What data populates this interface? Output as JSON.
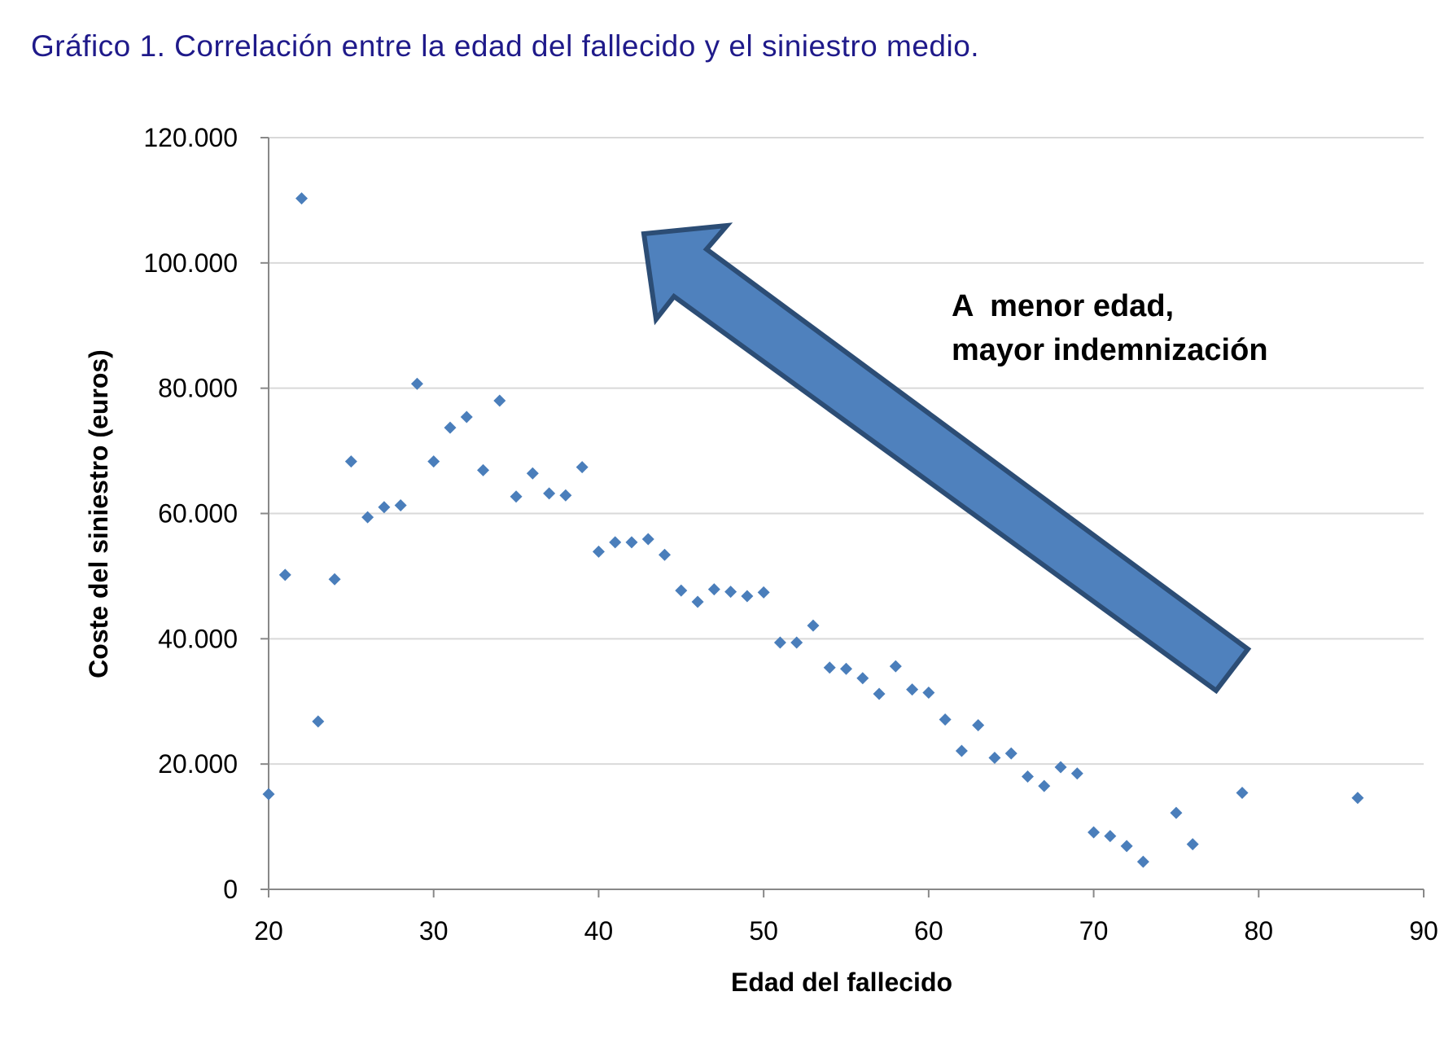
{
  "title": "Gráfico 1. Correlación entre la edad del fallecido y el siniestro medio.",
  "colors": {
    "title": "#1f1a8a",
    "marker": "#4a7ebb",
    "arrow_fill": "#4f81bd",
    "arrow_stroke": "#2c4d75",
    "grid": "#d9d9d9",
    "axis": "#888888"
  },
  "annotation": {
    "line1": "A  menor edad,",
    "line2": "mayor indemnización",
    "arrow_icon": "arrow-up-left-icon"
  },
  "chart_data": {
    "type": "scatter",
    "title": "Gráfico 1. Correlación entre la edad del fallecido y el siniestro medio.",
    "xlabel": "Edad del fallecido",
    "ylabel": "Coste del siniestro (euros)",
    "xlim": [
      20,
      90
    ],
    "ylim": [
      0,
      120000
    ],
    "x_ticks": [
      20,
      30,
      40,
      50,
      60,
      70,
      80,
      90
    ],
    "y_ticks": [
      0,
      20000,
      40000,
      60000,
      80000,
      100000,
      120000
    ],
    "x_tick_labels": [
      "20",
      "30",
      "40",
      "50",
      "60",
      "70",
      "80",
      "90"
    ],
    "y_tick_labels": [
      "0",
      "20.000",
      "40.000",
      "60.000",
      "80.000",
      "100.000",
      "120.000"
    ],
    "grid": "horizontal",
    "legend": "none",
    "marker": "diamond",
    "points": [
      [
        20,
        15200
      ],
      [
        21,
        50200
      ],
      [
        22,
        110300
      ],
      [
        23,
        26800
      ],
      [
        24,
        49500
      ],
      [
        25,
        68300
      ],
      [
        26,
        59400
      ],
      [
        27,
        61000
      ],
      [
        28,
        61300
      ],
      [
        29,
        80700
      ],
      [
        30,
        68300
      ],
      [
        31,
        73700
      ],
      [
        32,
        75400
      ],
      [
        33,
        66900
      ],
      [
        34,
        78000
      ],
      [
        35,
        62700
      ],
      [
        36,
        66400
      ],
      [
        37,
        63200
      ],
      [
        38,
        62900
      ],
      [
        39,
        67400
      ],
      [
        40,
        53900
      ],
      [
        41,
        55400
      ],
      [
        42,
        55400
      ],
      [
        43,
        55900
      ],
      [
        44,
        53400
      ],
      [
        45,
        47700
      ],
      [
        46,
        45900
      ],
      [
        47,
        47900
      ],
      [
        48,
        47500
      ],
      [
        49,
        46800
      ],
      [
        50,
        47400
      ],
      [
        51,
        39400
      ],
      [
        52,
        39400
      ],
      [
        53,
        42100
      ],
      [
        54,
        35400
      ],
      [
        55,
        35200
      ],
      [
        56,
        33700
      ],
      [
        57,
        31200
      ],
      [
        58,
        35600
      ],
      [
        59,
        31900
      ],
      [
        60,
        31400
      ],
      [
        61,
        27100
      ],
      [
        62,
        22100
      ],
      [
        63,
        26200
      ],
      [
        64,
        21000
      ],
      [
        65,
        21700
      ],
      [
        66,
        18000
      ],
      [
        67,
        16500
      ],
      [
        68,
        19500
      ],
      [
        69,
        18500
      ],
      [
        70,
        9100
      ],
      [
        71,
        8500
      ],
      [
        72,
        6900
      ],
      [
        73,
        4400
      ],
      [
        75,
        12200
      ],
      [
        76,
        7200
      ],
      [
        79,
        15400
      ],
      [
        86,
        14600
      ]
    ]
  }
}
